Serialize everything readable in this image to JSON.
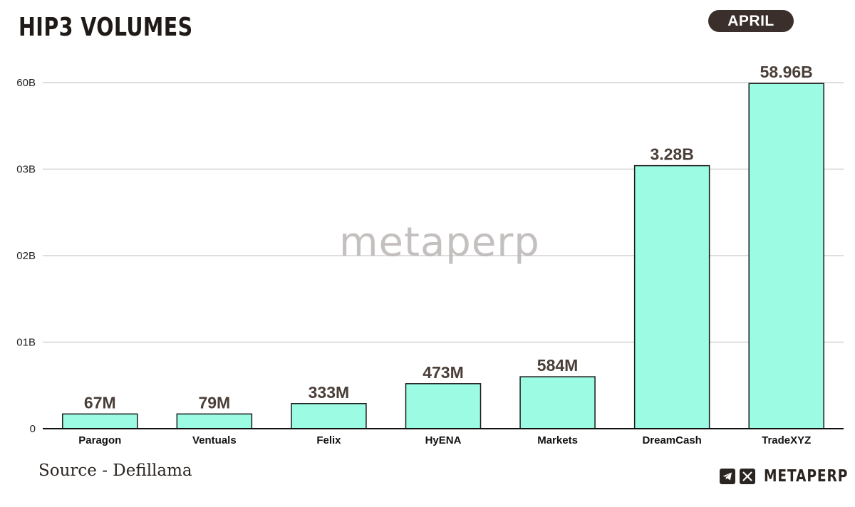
{
  "header": {
    "title": "HIP3 VOLUMES",
    "period": "APRIL"
  },
  "watermark": "metaperp",
  "footer": {
    "source": "Source - Defillama",
    "brand": "METAPERP",
    "icons": [
      "telegram-icon",
      "x-icon"
    ]
  },
  "colors": {
    "bar_fill": "#9bfce3",
    "bar_stroke": "#1a1a1a",
    "gridline": "#d4d4d4",
    "pill_bg": "#3a2f2a"
  },
  "chart_data": {
    "type": "bar",
    "title": "HIP3 VOLUMES",
    "categories": [
      "Paragon",
      "Ventuals",
      "Felix",
      "HyENA",
      "Markets",
      "DreamCash",
      "TradeXYZ"
    ],
    "values": [
      67,
      79,
      333,
      473,
      584,
      3.28,
      58.96
    ],
    "value_labels": [
      "67M",
      "79M",
      "333M",
      "473M",
      "584M",
      "3.28B",
      "58.96B"
    ],
    "display_level": [
      0.17,
      0.17,
      0.29,
      0.52,
      0.6,
      3.04,
      3.99
    ],
    "yticks": [
      {
        "label": "0",
        "level": 0
      },
      {
        "label": "01B",
        "level": 1
      },
      {
        "label": "02B",
        "level": 2
      },
      {
        "label": "03B",
        "level": 3
      },
      {
        "label": "60B",
        "level": 4
      }
    ],
    "grid": true,
    "legend": "none"
  }
}
